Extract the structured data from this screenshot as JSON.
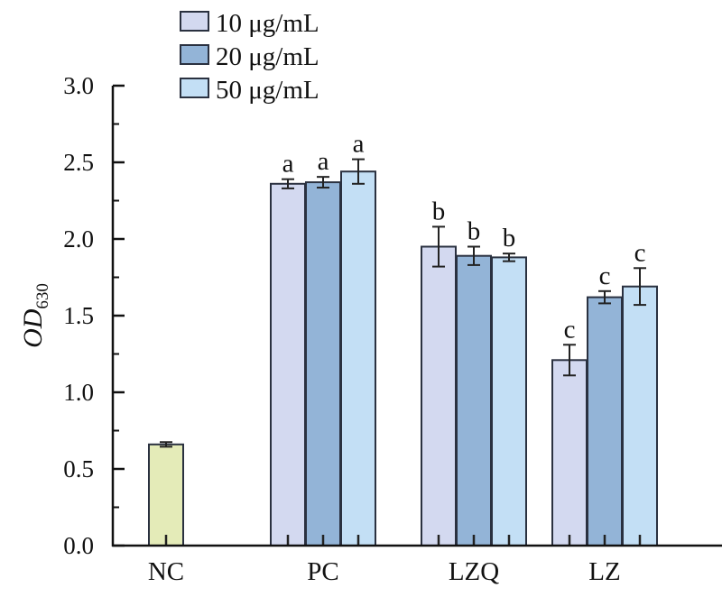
{
  "chart_data": {
    "type": "bar",
    "title": "",
    "xlabel": "",
    "ylabel": "OD",
    "ylabel_subscript": "630",
    "ylim": [
      0,
      3.0
    ],
    "yticks": [
      0.0,
      0.5,
      1.0,
      1.5,
      2.0,
      2.5,
      3.0
    ],
    "ytick_labels": [
      "0.0",
      "0.5",
      "1.0",
      "1.5",
      "2.0",
      "2.5",
      "3.0"
    ],
    "grid": false,
    "legend_position": "top-left",
    "categories": [
      "NC",
      "PC",
      "LZQ",
      "LZ"
    ],
    "control": {
      "category": "NC",
      "value": 0.66,
      "error": 0.015,
      "color": "#e4ebb8"
    },
    "series": [
      {
        "name": "10 μg/mL",
        "color": "#d3d9f0",
        "categories": [
          "PC",
          "LZQ",
          "LZ"
        ],
        "values": [
          2.36,
          1.95,
          1.21
        ],
        "errors": [
          0.03,
          0.13,
          0.1
        ],
        "significance": [
          "a",
          "b",
          "c"
        ]
      },
      {
        "name": "20 μg/mL",
        "color": "#93b4d7",
        "categories": [
          "PC",
          "LZQ",
          "LZ"
        ],
        "values": [
          2.37,
          1.89,
          1.62
        ],
        "errors": [
          0.035,
          0.06,
          0.04
        ],
        "significance": [
          "a",
          "b",
          "c"
        ]
      },
      {
        "name": "50 μg/mL",
        "color": "#c3dff5",
        "categories": [
          "PC",
          "LZQ",
          "LZ"
        ],
        "values": [
          2.44,
          1.88,
          1.69
        ],
        "errors": [
          0.08,
          0.025,
          0.12
        ],
        "significance": [
          "a",
          "b",
          "c"
        ]
      }
    ]
  }
}
